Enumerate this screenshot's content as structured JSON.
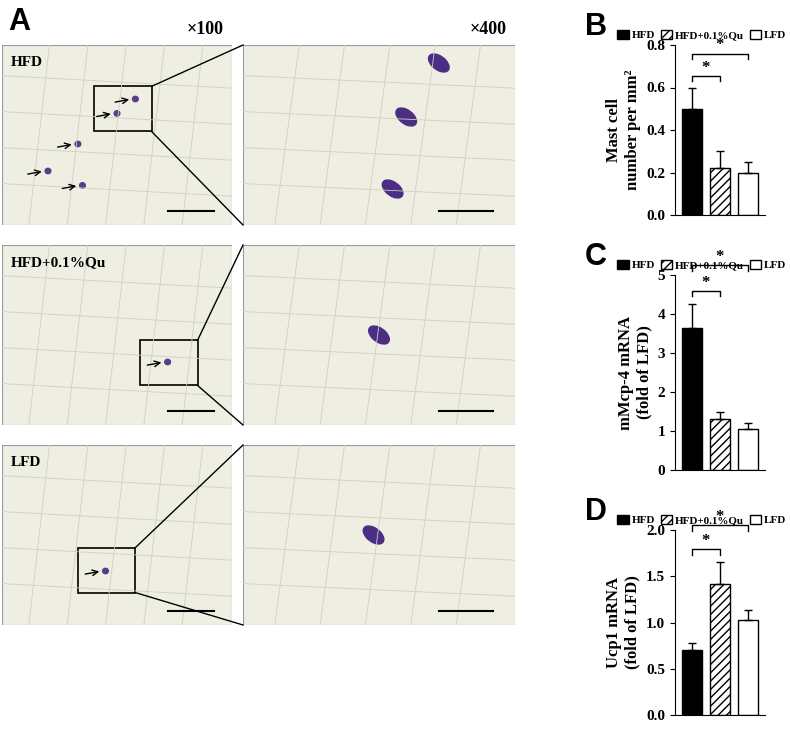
{
  "panel_a": {
    "label": "A",
    "columns": [
      "×100",
      "×400"
    ],
    "rows": [
      "HFD",
      "HFD+0.1%Qu",
      "LFD"
    ]
  },
  "chart_data": [
    {
      "type": "bar",
      "panel": "B",
      "y_label": "Mast cell\nnumber per mm²",
      "series": [
        {
          "name": "HFD",
          "color": "#000000",
          "values": [
            0.5
          ],
          "errors": [
            0.1
          ]
        },
        {
          "name": "HFD+0.1%Qu",
          "color": "#ffffff",
          "values": [
            0.22
          ],
          "errors": [
            0.08
          ]
        },
        {
          "name": "LFD",
          "color": "#ffffff",
          "values": [
            0.2
          ],
          "errors": [
            0.05
          ]
        }
      ],
      "ylim": [
        0,
        0.8
      ],
      "yticks": [
        {
          "value": 0,
          "label": "0.0"
        },
        {
          "value": 0.2,
          "label": "0.2"
        },
        {
          "value": 0.4,
          "label": "0.4"
        },
        {
          "value": 0.6,
          "label": "0.6"
        },
        {
          "value": 0.8,
          "label": "0.8"
        }
      ],
      "legend": "lower center",
      "tick_labels": "y",
      "significance": [
        {
          "pair": [
            0,
            1
          ],
          "label": "*"
        },
        {
          "pair": [
            0,
            2
          ],
          "label": "*"
        }
      ]
    },
    {
      "type": "bar",
      "panel": "C",
      "y_label": "mMcp-4 mRNA\n(fold of LFD)",
      "series": [
        {
          "name": "HFD",
          "color": "#000000",
          "values": [
            3.65
          ],
          "errors": [
            0.6
          ]
        },
        {
          "name": "HFD+0.1%Qu",
          "color": "#ffffff",
          "values": [
            1.3
          ],
          "errors": [
            0.2
          ]
        },
        {
          "name": "LFD",
          "color": "#ffffff",
          "values": [
            1.05
          ],
          "errors": [
            0.15
          ]
        }
      ],
      "ylim": [
        0,
        5
      ],
      "yticks": [
        0,
        1,
        2,
        3,
        4,
        5
      ],
      "legend": "lower center",
      "tick_labels": "y",
      "significance": [
        {
          "pair": [
            0,
            1
          ],
          "label": "*"
        },
        {
          "pair": [
            0,
            2
          ],
          "label": "*"
        }
      ]
    },
    {
      "type": "bar",
      "panel": "D",
      "y_label": "Ucp1 mRNA\n(fold of LFD)",
      "series": [
        {
          "name": "HFD",
          "color": "#000000",
          "values": [
            0.7
          ],
          "errors": [
            0.08
          ]
        },
        {
          "name": "HFD+0.1%Qu",
          "color": "#ffffff",
          "values": [
            1.42
          ],
          "errors": [
            0.23
          ]
        },
        {
          "name": "LFD",
          "color": "#ffffff",
          "values": [
            1.03
          ],
          "errors": [
            0.1
          ]
        }
      ],
      "ylim": [
        0,
        2.0
      ],
      "yticks": [
        {
          "value": 0,
          "label": "0.0"
        },
        {
          "value": 0.5,
          "label": "0.5"
        },
        {
          "value": 1.0,
          "label": "1.0"
        },
        {
          "value": 1.5,
          "label": "1.5"
        },
        {
          "value": 2.0,
          "label": "2.0"
        }
      ],
      "legend": "lower center",
      "tick_labels": "y",
      "significance": [
        {
          "pair": [
            0,
            1
          ],
          "label": "*"
        },
        {
          "pair": [
            0,
            2
          ],
          "label": "*"
        }
      ]
    }
  ]
}
